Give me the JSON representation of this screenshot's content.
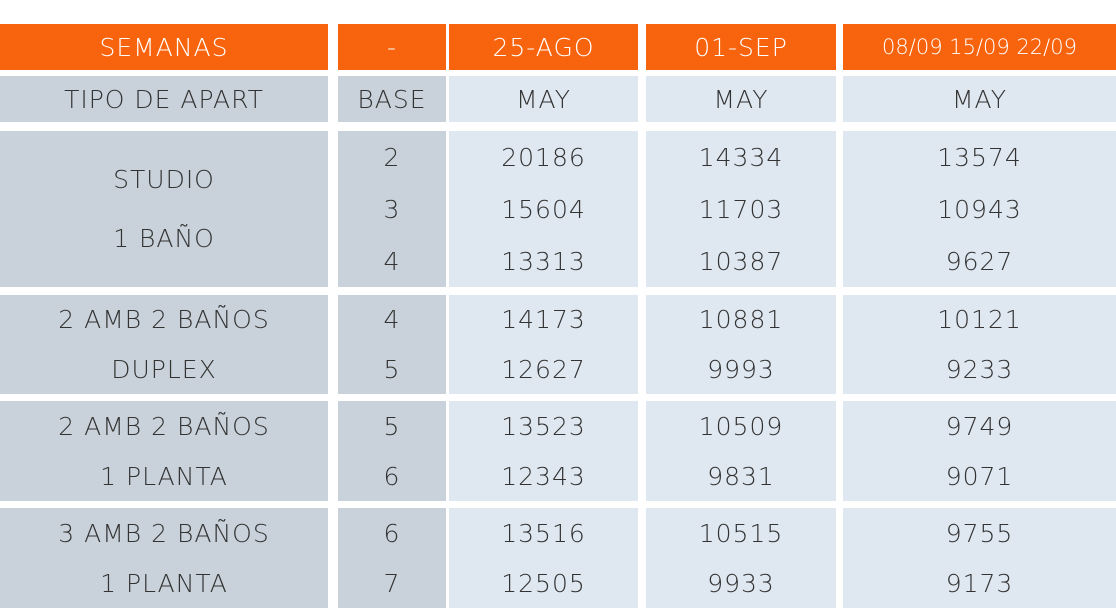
{
  "header": [
    "SEMANAS",
    "-",
    "25-AGO",
    "01-SEP",
    "08/09 15/09 22/09"
  ],
  "subheader": [
    "TIPO DE APART",
    "BASE",
    "MAY",
    "MAY",
    "MAY"
  ],
  "groups": [
    {
      "type": [
        "STUDIO",
        "1 BAÑO"
      ],
      "base": [
        "2",
        "3",
        "4"
      ],
      "c1": [
        "20186",
        "15604",
        "13313"
      ],
      "c2": [
        "14334",
        "11703",
        "10387"
      ],
      "c3": [
        "13574",
        "10943",
        "9627"
      ]
    },
    {
      "type": [
        "2 AMB 2 BAÑOS",
        "DUPLEX"
      ],
      "base": [
        "4",
        "5"
      ],
      "c1": [
        "14173",
        "12627"
      ],
      "c2": [
        "10881",
        "9993"
      ],
      "c3": [
        "10121",
        "9233"
      ]
    },
    {
      "type": [
        "2 AMB 2 BAÑOS",
        "1 PLANTA"
      ],
      "base": [
        "5",
        "6"
      ],
      "c1": [
        "13523",
        "12343"
      ],
      "c2": [
        "10509",
        "9831"
      ],
      "c3": [
        "9749",
        "9071"
      ]
    },
    {
      "type": [
        "3 AMB 2 BAÑOS",
        "1 PLANTA"
      ],
      "base": [
        "6",
        "7"
      ],
      "c1": [
        "13516",
        "12505"
      ],
      "c2": [
        "10515",
        "9933"
      ],
      "c3": [
        "9755",
        "9173"
      ]
    }
  ],
  "colors": {
    "header": "#f8630d",
    "label_cells": "#c9d2da",
    "value_cells": "#dfe7f0"
  }
}
